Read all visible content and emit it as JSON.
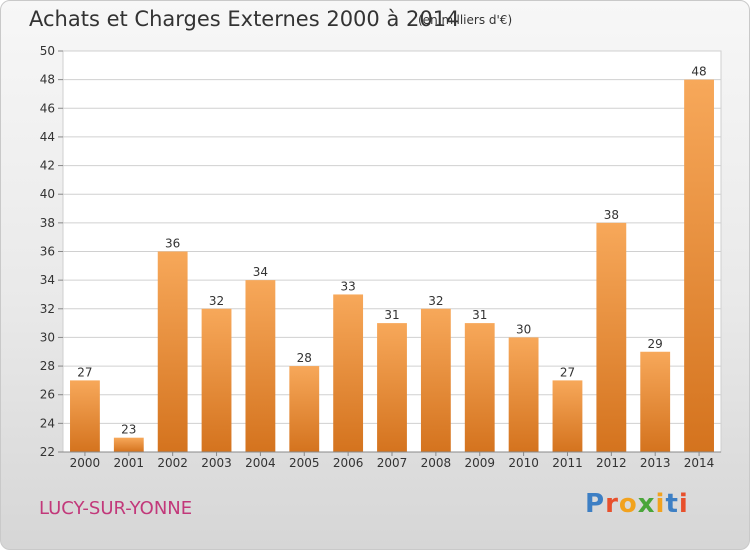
{
  "header": {
    "title": "Achats et Charges Externes 2000 à 2014",
    "subtitle": "(en milliers d'€)"
  },
  "footer": {
    "location": "LUCY-SUR-YONNE",
    "brand_letters": [
      "P",
      "r",
      "o",
      "x",
      "i",
      "t",
      "i"
    ]
  },
  "colors": {
    "bar_top": "#f7a85a",
    "bar_bottom": "#d4731e",
    "grid": "#d0d0d0",
    "location_text": "#c2387a",
    "brand": [
      "#3d7fc4",
      "#e8502c",
      "#f2a21e",
      "#4aa63a",
      "#f2a21e",
      "#3d7fc4",
      "#e8502c"
    ]
  },
  "chart_data": {
    "type": "bar",
    "title": "Achats et Charges Externes 2000 à 2014",
    "subtitle": "(en milliers d'€)",
    "categories": [
      "2000",
      "2001",
      "2002",
      "2003",
      "2004",
      "2005",
      "2006",
      "2007",
      "2008",
      "2009",
      "2010",
      "2011",
      "2012",
      "2013",
      "2014"
    ],
    "values": [
      27,
      23,
      36,
      32,
      34,
      28,
      33,
      31,
      32,
      31,
      30,
      27,
      38,
      29,
      48
    ],
    "ylim": [
      22,
      50
    ],
    "yticks": [
      22,
      24,
      26,
      28,
      30,
      32,
      34,
      36,
      38,
      40,
      42,
      44,
      46,
      48,
      50
    ],
    "grid": true,
    "data_labels": true
  }
}
